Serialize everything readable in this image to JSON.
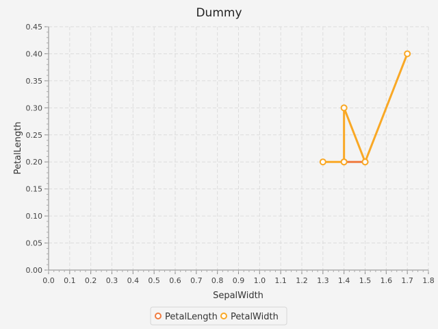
{
  "chart_data": {
    "type": "line",
    "title": "Dummy",
    "xlabel": "SepalWidth",
    "ylabel": "PetalLength",
    "xlim": [
      0.0,
      1.8
    ],
    "ylim": [
      0.0,
      0.45
    ],
    "x_ticks": [
      "0.0",
      "0.1",
      "0.2",
      "0.3",
      "0.4",
      "0.5",
      "0.6",
      "0.7",
      "0.8",
      "0.9",
      "1.0",
      "1.1",
      "1.2",
      "1.3",
      "1.4",
      "1.5",
      "1.6",
      "1.7",
      "1.8"
    ],
    "y_ticks": [
      "0.00",
      "0.05",
      "0.10",
      "0.15",
      "0.20",
      "0.25",
      "0.30",
      "0.35",
      "0.40",
      "0.45"
    ],
    "grid": true,
    "legend_position": "bottom",
    "series": [
      {
        "name": "PetalLength",
        "color": "#f07b3f",
        "points": [
          [
            1.4,
            0.2
          ],
          [
            1.5,
            0.2
          ]
        ]
      },
      {
        "name": "PetalWidth",
        "color": "#f9a825",
        "points": [
          [
            1.3,
            0.2
          ],
          [
            1.4,
            0.2
          ],
          [
            1.4,
            0.3
          ],
          [
            1.5,
            0.2
          ],
          [
            1.7,
            0.4
          ]
        ]
      }
    ]
  }
}
